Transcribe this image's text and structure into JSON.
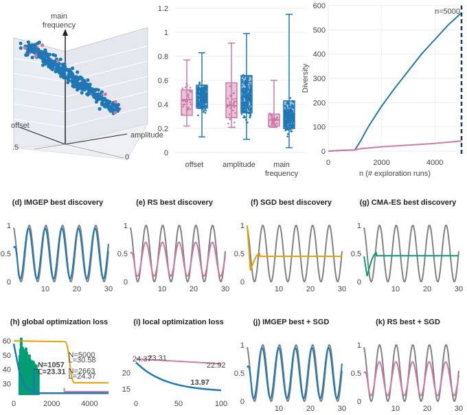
{
  "colors": {
    "imgep": "#1f77b4",
    "rs": "#cc79a7",
    "sgd": "#e69f00",
    "cmaes": "#009e73",
    "target": "#808080",
    "hist": "#009e73",
    "dash": "#1a3a5c"
  },
  "chart_data": [
    {
      "id": "a",
      "type": "scatter3d",
      "labels": {
        "vertical": "main\nfrequency",
        "left": "offset",
        "right": "amplitude",
        "tick_left": ".5",
        "tick_right": "0"
      }
    },
    {
      "id": "b",
      "type": "box",
      "categories": [
        "offset",
        "amplitude",
        "main\nfrequency"
      ],
      "ylim": [
        0,
        1.2
      ],
      "yticks": [
        "0",
        "0.2",
        "0.4",
        "0.6",
        "0.8",
        "1",
        "1.2"
      ],
      "series": [
        {
          "key": "rs",
          "stats": [
            {
              "min": 0.22,
              "q1": 0.31,
              "median": 0.44,
              "q3": 0.52,
              "max": 0.77
            },
            {
              "min": 0.21,
              "q1": 0.29,
              "median": 0.39,
              "q3": 0.58,
              "max": 0.91
            },
            {
              "min": 0.21,
              "q1": 0.22,
              "median": 0.27,
              "q3": 0.32,
              "max": 0.6
            }
          ]
        },
        {
          "key": "imgep",
          "stats": [
            {
              "min": 0.13,
              "q1": 0.37,
              "median": 0.46,
              "q3": 0.56,
              "max": 0.83
            },
            {
              "min": 0.11,
              "q1": 0.33,
              "median": 0.46,
              "q3": 0.64,
              "max": 0.99
            },
            {
              "min": 0.04,
              "q1": 0.2,
              "median": 0.29,
              "q3": 0.43,
              "max": 1.15
            }
          ]
        }
      ]
    },
    {
      "id": "c",
      "type": "line",
      "xlabel": "n (# exploration runs)",
      "ylabel": "Diversity",
      "xlim": [
        0,
        5000
      ],
      "ylim": [
        0,
        600
      ],
      "xticks": [
        "0",
        "2000",
        "4000"
      ],
      "yticks": [
        "0",
        "100",
        "200",
        "300",
        "400",
        "500",
        "600"
      ],
      "annotation": "n=5000",
      "series": [
        {
          "key": "imgep",
          "x": [
            0,
            500,
            1000,
            1200,
            1500,
            2000,
            2500,
            3000,
            3500,
            4000,
            4500,
            5000
          ],
          "y": [
            0,
            3,
            5,
            40,
            100,
            185,
            260,
            330,
            400,
            460,
            520,
            570
          ]
        },
        {
          "key": "rs",
          "x": [
            0,
            500,
            1000,
            1200,
            2000,
            3000,
            4000,
            5000
          ],
          "y": [
            0,
            3,
            5,
            10,
            18,
            25,
            32,
            42
          ]
        }
      ]
    },
    {
      "id": "d",
      "type": "line",
      "title": "(d) IMGEP best discovery",
      "xlim": [
        0,
        30
      ],
      "ylim": [
        0,
        1
      ],
      "xticks": [
        "10",
        "20",
        "30"
      ],
      "yticks": [
        "0",
        "0.5",
        "1"
      ],
      "sig": {
        "mode": "sine",
        "offset": 0.5,
        "amp": 0.45,
        "cycles": 5.7,
        "phase": 0.3,
        "color": "imgep"
      }
    },
    {
      "id": "e",
      "type": "line",
      "title": "(e) RS best discovery",
      "xlim": [
        0,
        30
      ],
      "ylim": [
        0,
        1
      ],
      "xticks": [
        "10",
        "20",
        "30"
      ],
      "yticks": [
        "0",
        "0.5",
        "1"
      ],
      "sig": {
        "mode": "sine",
        "offset": 0.4,
        "amp": 0.3,
        "cycles": 5.7,
        "phase": 0.1,
        "color": "rs"
      }
    },
    {
      "id": "f",
      "type": "line",
      "title": "(f) SGD best discovery",
      "xlim": [
        0,
        30
      ],
      "ylim": [
        0,
        1
      ],
      "xticks": [
        "10",
        "20",
        "30"
      ],
      "yticks": [
        "0",
        "0.5",
        "1"
      ],
      "sig": {
        "mode": "decay",
        "start": 1.0,
        "dip": 0.2,
        "final": 0.45,
        "color": "sgd"
      }
    },
    {
      "id": "g",
      "type": "line",
      "title": "(g) CMA-ES best discovery",
      "xlim": [
        0,
        30
      ],
      "ylim": [
        0,
        1
      ],
      "xticks": [
        "10",
        "20",
        "30"
      ],
      "yticks": [
        "0",
        "0.5",
        "1"
      ],
      "sig": {
        "mode": "decay",
        "start": 0.45,
        "dip": 0.1,
        "final": 0.46,
        "color": "cmaes"
      }
    },
    {
      "id": "h",
      "type": "line",
      "title": "(h) global optimization loss",
      "xlim": [
        0,
        5000
      ],
      "ylim": [
        22,
        62
      ],
      "xticks": [
        "0",
        "2000",
        "4000"
      ],
      "yticks": [
        "30",
        "40",
        "50",
        "60"
      ],
      "annotations": [
        {
          "text": "N=5000",
          "x": 2880,
          "y": 48.5
        },
        {
          "text": "L=30.58",
          "x": 2880,
          "y": 44.8
        },
        {
          "text": "N=2663",
          "x": 2880,
          "y": 37.2
        },
        {
          "text": "L=24.37",
          "x": 2880,
          "y": 33.5
        },
        {
          "text": "N=1057",
          "x": 180,
          "y": 41.5
        },
        {
          "text": "L=23.31",
          "x": 180,
          "y": 36.8
        }
      ]
    },
    {
      "id": "i",
      "type": "line",
      "title": "(i) local optimization loss",
      "xlim": [
        0,
        100
      ],
      "ylim": [
        13,
        31
      ],
      "xticks": [
        "0",
        "50",
        "100"
      ],
      "yticks": [
        "15",
        "20"
      ],
      "annotations": [
        {
          "text": "24.37",
          "x": -4,
          "y": 23.6
        },
        {
          "text": "23.31",
          "x": 14,
          "y": 23.9
        },
        {
          "text": "22.92",
          "x": 83,
          "y": 21.7
        },
        {
          "text": "13.97",
          "x": 64,
          "y": 16.3
        }
      ]
    },
    {
      "id": "j",
      "type": "line",
      "title": "(j) IMGEP best + SGD",
      "xlim": [
        0,
        30
      ],
      "ylim": [
        0,
        1
      ],
      "xticks": [
        "10",
        "20",
        "30"
      ],
      "yticks": [
        "0",
        "0.5",
        "1"
      ],
      "sig": {
        "mode": "sine",
        "offset": 0.5,
        "amp": 0.45,
        "cycles": 5.7,
        "phase": 0.3,
        "color": "imgep"
      }
    },
    {
      "id": "k",
      "type": "line",
      "title": "(k) RS best + SGD",
      "xlim": [
        0,
        30
      ],
      "ylim": [
        0,
        1
      ],
      "xticks": [
        "10",
        "20",
        "30"
      ],
      "yticks": [
        "0",
        "0.5",
        "1"
      ],
      "sig": {
        "mode": "sine",
        "offset": 0.4,
        "amp": 0.3,
        "cycles": 5.7,
        "phase": 0.1,
        "color": "rs"
      }
    }
  ]
}
